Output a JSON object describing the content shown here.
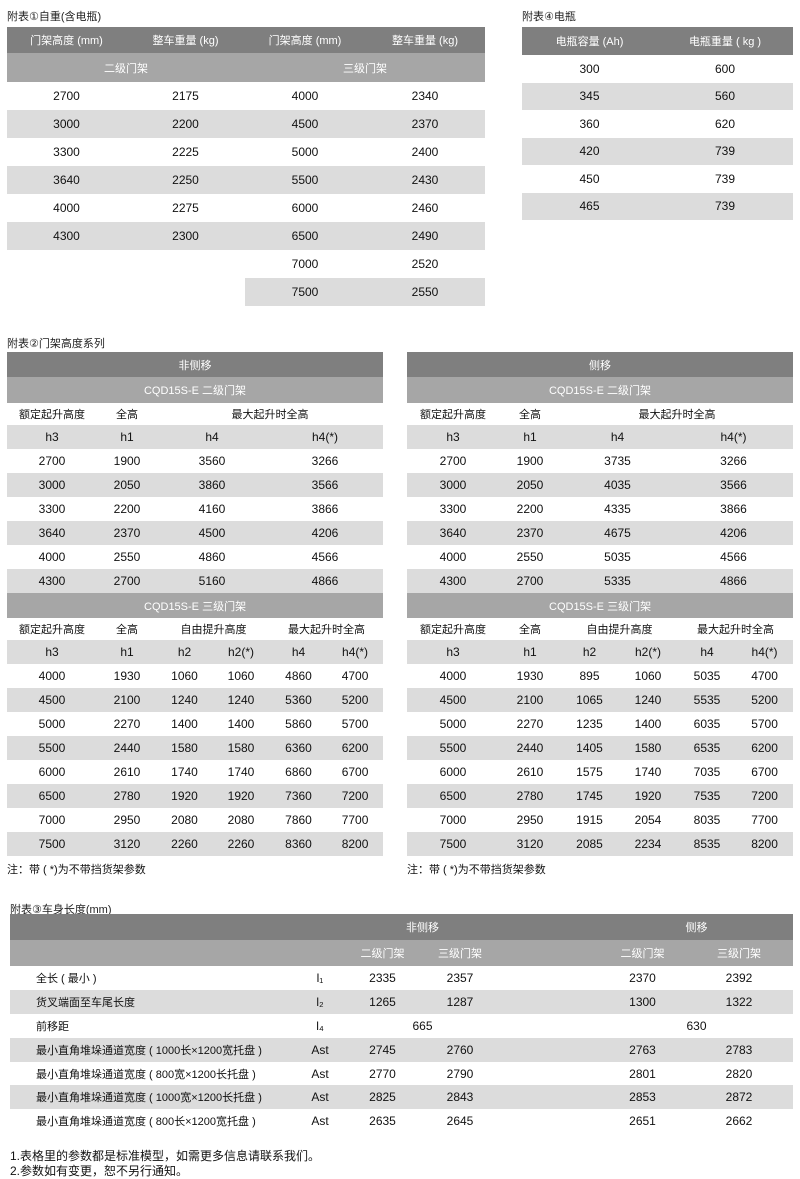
{
  "table1": {
    "title": "附表①自重(含电瓶)",
    "headers": [
      "门架高度 (mm)",
      "整车重量 (kg)",
      "门架高度 (mm)",
      "整车重量 (kg)"
    ],
    "groups": [
      "二级门架",
      "三级门架"
    ],
    "rows": [
      [
        "2700",
        "2175",
        "4000",
        "2340"
      ],
      [
        "3000",
        "2200",
        "4500",
        "2370"
      ],
      [
        "3300",
        "2225",
        "5000",
        "2400"
      ],
      [
        "3640",
        "2250",
        "5500",
        "2430"
      ],
      [
        "4000",
        "2275",
        "6000",
        "2460"
      ],
      [
        "4300",
        "2300",
        "6500",
        "2490"
      ],
      [
        "",
        "",
        "7000",
        "2520"
      ],
      [
        "",
        "",
        "7500",
        "2550"
      ]
    ]
  },
  "table4": {
    "title": "附表④电瓶",
    "headers": [
      "电瓶容量 (Ah)",
      "电瓶重量 ( kg )"
    ],
    "rows": [
      [
        "300",
        "600"
      ],
      [
        "345",
        "560"
      ],
      [
        "360",
        "620"
      ],
      [
        "420",
        "739"
      ],
      [
        "450",
        "739"
      ],
      [
        "465",
        "739"
      ]
    ]
  },
  "table2": {
    "title": "附表②门架高度系列",
    "panels": [
      {
        "header": "非侧移",
        "two_stage": {
          "header": "CQD15S-E  二级门架",
          "labels": [
            "额定起升高度",
            "全高",
            "最大起升时全高"
          ],
          "symbols": [
            "h3",
            "h1",
            "h4",
            "h4(*)"
          ],
          "rows": [
            [
              "2700",
              "1900",
              "3560",
              "3266"
            ],
            [
              "3000",
              "2050",
              "3860",
              "3566"
            ],
            [
              "3300",
              "2200",
              "4160",
              "3866"
            ],
            [
              "3640",
              "2370",
              "4500",
              "4206"
            ],
            [
              "4000",
              "2550",
              "4860",
              "4566"
            ],
            [
              "4300",
              "2700",
              "5160",
              "4866"
            ]
          ]
        },
        "three_stage": {
          "header": "CQD15S-E   三级门架",
          "labels": [
            "额定起升高度",
            "全高",
            "自由提升高度",
            "最大起升时全高"
          ],
          "symbols": [
            "h3",
            "h1",
            "h2",
            "h2(*)",
            "h4",
            "h4(*)"
          ],
          "rows": [
            [
              "4000",
              "1930",
              "1060",
              "1060",
              "4860",
              "4700"
            ],
            [
              "4500",
              "2100",
              "1240",
              "1240",
              "5360",
              "5200"
            ],
            [
              "5000",
              "2270",
              "1400",
              "1400",
              "5860",
              "5700"
            ],
            [
              "5500",
              "2440",
              "1580",
              "1580",
              "6360",
              "6200"
            ],
            [
              "6000",
              "2610",
              "1740",
              "1740",
              "6860",
              "6700"
            ],
            [
              "6500",
              "2780",
              "1920",
              "1920",
              "7360",
              "7200"
            ],
            [
              "7000",
              "2950",
              "2080",
              "2080",
              "7860",
              "7700"
            ],
            [
              "7500",
              "3120",
              "2260",
              "2260",
              "8360",
              "8200"
            ]
          ]
        },
        "note": "注：带 ( *)为不带挡货架参数"
      },
      {
        "header": "侧移",
        "two_stage": {
          "header": "CQD15S-E  二级门架",
          "labels": [
            "额定起升高度",
            "全高",
            "最大起升时全高"
          ],
          "symbols": [
            "h3",
            "h1",
            "h4",
            "h4(*)"
          ],
          "rows": [
            [
              "2700",
              "1900",
              "3735",
              "3266"
            ],
            [
              "3000",
              "2050",
              "4035",
              "3566"
            ],
            [
              "3300",
              "2200",
              "4335",
              "3866"
            ],
            [
              "3640",
              "2370",
              "4675",
              "4206"
            ],
            [
              "4000",
              "2550",
              "5035",
              "4566"
            ],
            [
              "4300",
              "2700",
              "5335",
              "4866"
            ]
          ]
        },
        "three_stage": {
          "header": "CQD15S-E   三级门架",
          "labels": [
            "额定起升高度",
            "全高",
            "自由提升高度",
            "最大起升时全高"
          ],
          "symbols": [
            "h3",
            "h1",
            "h2",
            "h2(*)",
            "h4",
            "h4(*)"
          ],
          "rows": [
            [
              "4000",
              "1930",
              "895",
              "1060",
              "5035",
              "4700"
            ],
            [
              "4500",
              "2100",
              "1065",
              "1240",
              "5535",
              "5200"
            ],
            [
              "5000",
              "2270",
              "1235",
              "1400",
              "6035",
              "5700"
            ],
            [
              "5500",
              "2440",
              "1405",
              "1580",
              "6535",
              "6200"
            ],
            [
              "6000",
              "2610",
              "1575",
              "1740",
              "7035",
              "6700"
            ],
            [
              "6500",
              "2780",
              "1745",
              "1920",
              "7535",
              "7200"
            ],
            [
              "7000",
              "2950",
              "1915",
              "2054",
              "8035",
              "7700"
            ],
            [
              "7500",
              "3120",
              "2085",
              "2234",
              "8535",
              "8200"
            ]
          ]
        },
        "note": "注：带 ( *)为不带挡货架参数"
      }
    ]
  },
  "table3": {
    "title": "附表③车身长度(mm)",
    "groups": [
      "非侧移",
      "侧移"
    ],
    "subheaders": [
      "二级门架",
      "三级门架",
      "二级门架",
      "三级门架"
    ],
    "rows": [
      [
        "全长 ( 最小 )",
        "l₁",
        "2335",
        "2357",
        "2370",
        "2392"
      ],
      [
        "货叉端面至车尾长度",
        "l₂",
        "1265",
        "1287",
        "1300",
        "1322"
      ],
      [
        "前移距",
        "l₄",
        "665",
        "",
        "630",
        ""
      ],
      [
        "最小直角堆垛通道宽度 ( 1000长×1200宽托盘 )",
        "Ast",
        "2745",
        "2760",
        "2763",
        "2783"
      ],
      [
        "最小直角堆垛通道宽度 ( 800宽×1200长托盘 )",
        "Ast",
        "2770",
        "2790",
        "2801",
        "2820"
      ],
      [
        "最小直角堆垛通道宽度 ( 1000宽×1200长托盘 )",
        "Ast",
        "2825",
        "2843",
        "2853",
        "2872"
      ],
      [
        "最小直角堆垛通道宽度 ( 800长×1200宽托盘 )",
        "Ast",
        "2635",
        "2645",
        "2651",
        "2662"
      ]
    ]
  },
  "footnotes": [
    "1.表格里的参数都是标准模型，如需更多信息请联系我们。",
    "2.参数如有变更，恕不另行通知。"
  ]
}
